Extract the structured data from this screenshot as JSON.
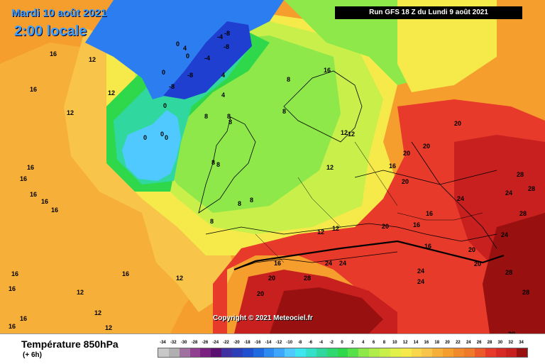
{
  "header": {
    "date_title": "Mardi 10 août 2021",
    "time_title": "2:00 locale",
    "run_banner": "Run GFS 18 Z du Lundi 9 août 2021"
  },
  "copyright": "Copyright © 2021 Meteociel.fr",
  "footer": {
    "product_title": "Température 850hPa",
    "product_subtitle": "(+ 6h)"
  },
  "colors": {
    "deep_blue": "#1f3fd0",
    "blue": "#2c7df0",
    "light_blue": "#4fc9ff",
    "cyan": "#3fe6f0",
    "teal": "#30d8a0",
    "green": "#2fd84a",
    "light_green": "#8ee84a",
    "yellow_green": "#c9ef4a",
    "yellow": "#f5ea4a",
    "light_orange": "#f8c44a",
    "orange": "#f59e2e",
    "dark_orange": "#ef7a2a",
    "red": "#e83a2a",
    "dark_red": "#c81f1f",
    "deep_red": "#981010"
  },
  "scale": {
    "ticks": [
      "-34",
      "-32",
      "-30",
      "-28",
      "-26",
      "-24",
      "-22",
      "-20",
      "-18",
      "-16",
      "-14",
      "-12",
      "-10",
      "-8",
      "-6",
      "-4",
      "-2",
      "0",
      "2",
      "4",
      "6",
      "8",
      "10",
      "12",
      "14",
      "16",
      "18",
      "20",
      "22",
      "24",
      "26",
      "28",
      "30",
      "32",
      "34"
    ],
    "colors": [
      "#c8c8c8",
      "#b0b0b0",
      "#a070a0",
      "#904090",
      "#7a2080",
      "#5a1070",
      "#4030a0",
      "#2c3fb8",
      "#2050d0",
      "#1f6ae0",
      "#2c8af0",
      "#3fa6ff",
      "#4fc9ff",
      "#3fe6f0",
      "#34e0c8",
      "#30d8a0",
      "#2fd870",
      "#2fd84a",
      "#58e04a",
      "#8ee84a",
      "#b0ec4a",
      "#c9ef4a",
      "#e2f04a",
      "#f5ea4a",
      "#f8d84a",
      "#f8c44a",
      "#f6b03a",
      "#f59e2e",
      "#f08a2c",
      "#ef7a2a",
      "#ec5a2a",
      "#e83a2a",
      "#d82a24",
      "#c81f1f",
      "#981010"
    ]
  },
  "iso_labels": [
    "-8",
    "-4",
    "-8",
    "-4",
    "-8",
    "-8",
    "0",
    "0",
    "0",
    "0",
    "4",
    "4",
    "4",
    "0",
    "0",
    "0",
    "8",
    "8",
    "8",
    "8",
    "8",
    "8",
    "8",
    "8",
    "8",
    "8",
    "12",
    "12",
    "12",
    "12",
    "12",
    "12",
    "12",
    "12",
    "12",
    "12",
    "12",
    "12",
    "16",
    "16",
    "16",
    "16",
    "16",
    "16",
    "16",
    "16",
    "16",
    "16",
    "16",
    "16",
    "16",
    "16",
    "16",
    "16",
    "16",
    "16",
    "20",
    "20",
    "20",
    "20",
    "20",
    "20",
    "20",
    "20",
    "20",
    "24",
    "24",
    "24",
    "24",
    "24",
    "24",
    "24",
    "28",
    "28",
    "28",
    "28",
    "28",
    "28",
    "28"
  ]
}
